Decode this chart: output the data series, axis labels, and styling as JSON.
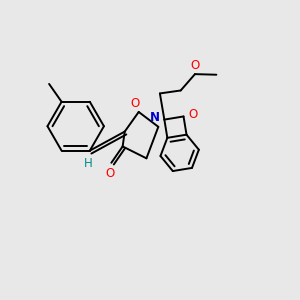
{
  "bg_color": "#e8e8e8",
  "bond_color": "#000000",
  "lw": 1.4,
  "atom_colors": {
    "O": "#ff0000",
    "N": "#0000cd",
    "H": "#008b8b"
  },
  "font_size": 8.5
}
